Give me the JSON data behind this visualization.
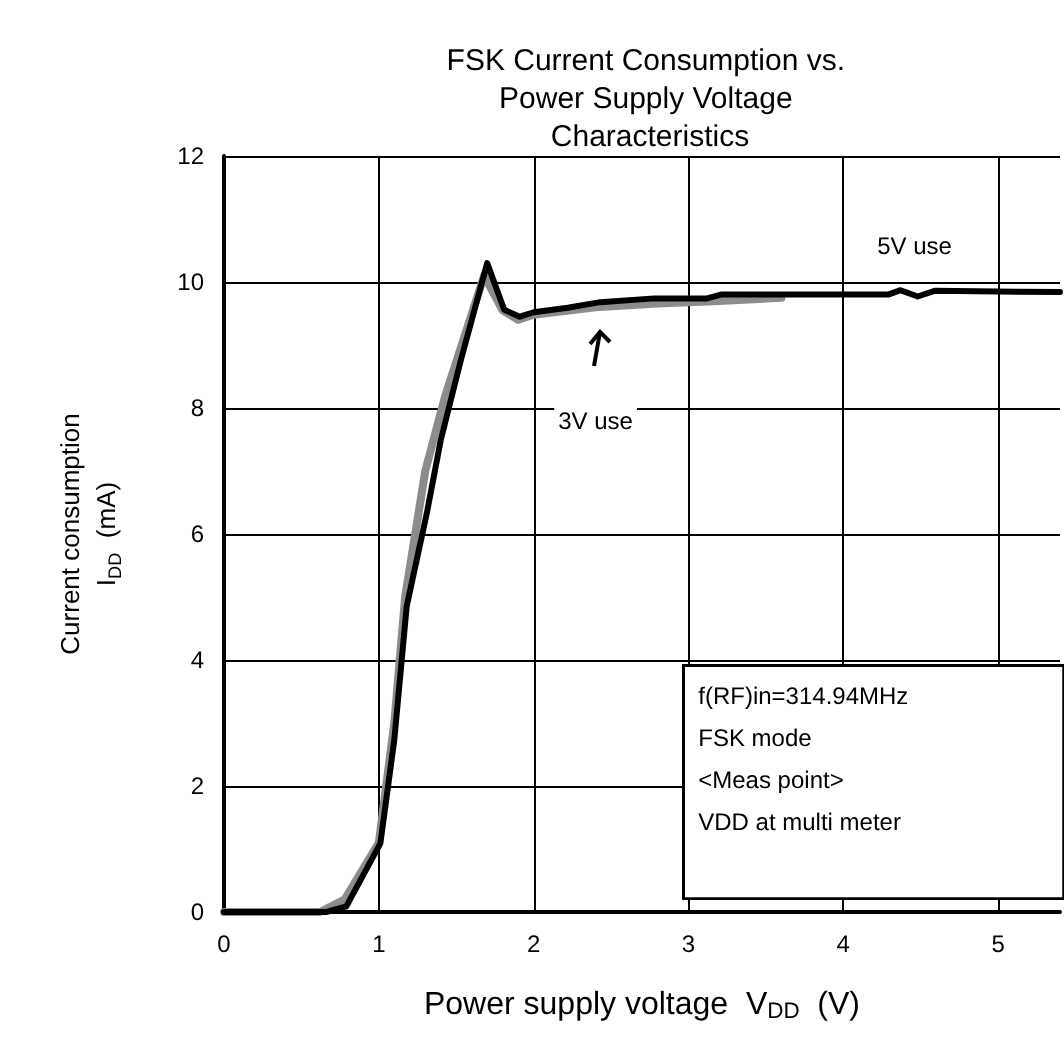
{
  "chart_data": {
    "type": "line",
    "title": "FSK Current Consumption vs. Power Supply Voltage Characteristics",
    "xlabel": "Power supply voltage  V$_{DD}$  (V)",
    "ylabel": "Current consumption\nI$_{DD}$  (mA)",
    "xlim": [
      0,
      5.4
    ],
    "xticks": [
      0,
      1,
      2,
      3,
      4,
      5
    ],
    "ylim": [
      0,
      12
    ],
    "yticks": [
      0,
      2,
      4,
      6,
      8,
      10,
      12
    ],
    "grid": true,
    "marker": "none",
    "line_style": "solid",
    "series": [
      {
        "color": "#8c8c8c",
        "x": [
          0,
          0.62,
          0.78,
          1.0,
          1.1,
          1.17,
          1.3,
          1.43,
          1.68,
          1.8,
          1.9,
          2.0,
          2.4,
          2.8,
          3.2,
          3.6
        ],
        "values": [
          0,
          0,
          0.2,
          1.1,
          3,
          5,
          7,
          8.2,
          10.1,
          9.55,
          9.4,
          9.48,
          9.6,
          9.66,
          9.7,
          9.75
        ]
      },
      {
        "color": "#000000",
        "x": [
          0,
          0.66,
          0.79,
          1.01,
          1.1,
          1.18,
          1.31,
          1.4,
          1.53,
          1.7,
          1.81,
          1.91,
          2.0,
          2.22,
          2.43,
          2.78,
          3.12,
          3.21,
          4.16,
          4.29,
          4.37,
          4.48,
          4.59,
          5.4
        ],
        "values": [
          0,
          0,
          0.09,
          1.09,
          2.73,
          4.85,
          6.33,
          7.49,
          8.76,
          10.3,
          9.56,
          9.45,
          9.52,
          9.59,
          9.68,
          9.74,
          9.74,
          9.8,
          9.8,
          9.8,
          9.87,
          9.77,
          9.86,
          9.84
        ]
      }
    ],
    "annotations": [
      {
        "text": "5V use",
        "x": 4.46,
        "y": 10.57
      },
      {
        "text": "3V use",
        "x": 2.4,
        "y": 7.8
      },
      "f(RF)in=314.94MHz\nFSK mode\n<Meas point>\nVDD at multi meter"
    ]
  }
}
